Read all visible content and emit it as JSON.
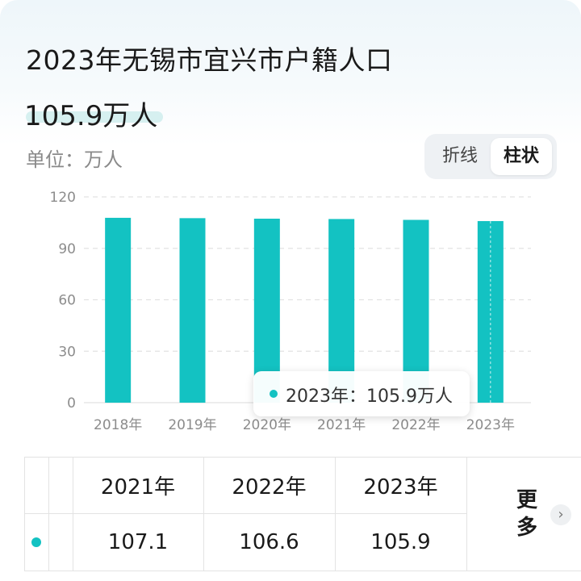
{
  "title": "2023年无锡市宜兴市户籍人口",
  "value_display": "105.9万人",
  "unit_label": "单位：万人",
  "toggle": {
    "line_label": "折线",
    "bar_label": "柱状",
    "active": "柱状"
  },
  "tooltip": {
    "text": "2023年：105.9万人"
  },
  "table": {
    "headers": [
      "2021年",
      "2022年",
      "2023年"
    ],
    "values": [
      "107.1",
      "106.6",
      "105.9"
    ],
    "more_label": "更多",
    "more_icon": "chevron-right-icon"
  },
  "colors": {
    "bar": "#13c2c2",
    "highlight": "#d6f0f0"
  },
  "chart_data": {
    "type": "bar",
    "categories": [
      "2018年",
      "2019年",
      "2020年",
      "2021年",
      "2022年",
      "2023年"
    ],
    "values": [
      107.8,
      107.6,
      107.3,
      107.1,
      106.6,
      105.9
    ],
    "ylim": [
      0,
      120
    ],
    "yticks": [
      0,
      30,
      60,
      90,
      120
    ],
    "grid": true,
    "highlight_category": "2023年"
  }
}
